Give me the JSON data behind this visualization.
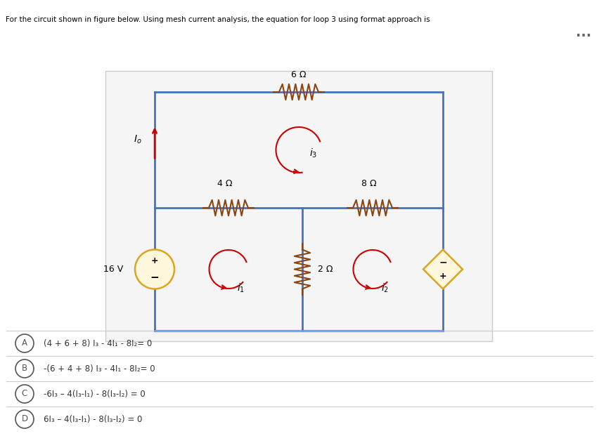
{
  "title_text": "For the circuit shown in figure below. Using mesh current analysis, the equation for loop 3 using format approach is",
  "bg_color": "#ffffff",
  "circuit_bg": "#f0f0f0",
  "circuit_border": "#4472c4",
  "wire_color": "#4472c4",
  "resistor_color": "#8B4513",
  "current_arrow_color": "#cc0000",
  "voltage_source_color": "#DAA520",
  "options": [
    {
      "label": "A",
      "text": "(4 + 6 + 8) I₃ - 4I₁ - 8I₂= 0"
    },
    {
      "label": "B",
      "text": "-(6 + 4 + 8) I₃ - 4I₁ - 8I₂= 0"
    },
    {
      "label": "C",
      "text": "-6I₃ – 4(I₃-I₁) - 8(I₃-I₂) = 0"
    },
    {
      "label": "D",
      "text": "6I₃ – 4(I₃-I₁) - 8(I₃-I₂) = 0"
    }
  ]
}
